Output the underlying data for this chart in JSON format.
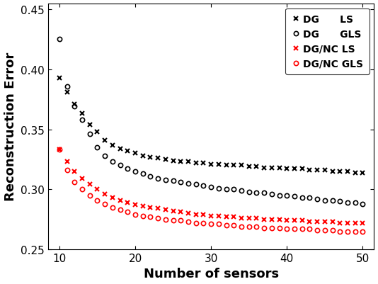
{
  "title": "",
  "xlabel": "Number of sensors",
  "ylabel": "Reconstruction Error",
  "xlim": [
    8.5,
    51.5
  ],
  "ylim": [
    0.25,
    0.455
  ],
  "xticks": [
    10,
    20,
    30,
    40,
    50
  ],
  "yticks": [
    0.25,
    0.3,
    0.35,
    0.4,
    0.45
  ],
  "series": [
    {
      "label": "DG      LS",
      "color": "black",
      "marker": "x",
      "markersize": 5,
      "linewidth": 0,
      "values_x": [
        10,
        11,
        12,
        13,
        14,
        15,
        16,
        17,
        18,
        19,
        20,
        21,
        22,
        23,
        24,
        25,
        26,
        27,
        28,
        29,
        30,
        31,
        32,
        33,
        34,
        35,
        36,
        37,
        38,
        39,
        40,
        41,
        42,
        43,
        44,
        45,
        46,
        47,
        48,
        49,
        50
      ],
      "values_y": [
        0.393,
        0.381,
        0.371,
        0.363,
        0.354,
        0.348,
        0.341,
        0.337,
        0.334,
        0.332,
        0.33,
        0.328,
        0.327,
        0.326,
        0.325,
        0.324,
        0.323,
        0.323,
        0.322,
        0.322,
        0.321,
        0.321,
        0.32,
        0.32,
        0.32,
        0.319,
        0.319,
        0.318,
        0.318,
        0.318,
        0.317,
        0.317,
        0.317,
        0.316,
        0.316,
        0.316,
        0.315,
        0.315,
        0.315,
        0.314,
        0.314
      ]
    },
    {
      "label": "DG      GLS",
      "color": "black",
      "marker": "o",
      "markersize": 4.5,
      "linewidth": 0,
      "values_x": [
        10,
        11,
        12,
        13,
        14,
        15,
        16,
        17,
        18,
        19,
        20,
        21,
        22,
        23,
        24,
        25,
        26,
        27,
        28,
        29,
        30,
        31,
        32,
        33,
        34,
        35,
        36,
        37,
        38,
        39,
        40,
        41,
        42,
        43,
        44,
        45,
        46,
        47,
        48,
        49,
        50
      ],
      "values_y": [
        0.425,
        0.386,
        0.369,
        0.358,
        0.346,
        0.335,
        0.328,
        0.323,
        0.32,
        0.317,
        0.315,
        0.313,
        0.311,
        0.309,
        0.308,
        0.307,
        0.306,
        0.305,
        0.304,
        0.303,
        0.302,
        0.301,
        0.3,
        0.3,
        0.299,
        0.298,
        0.297,
        0.297,
        0.296,
        0.295,
        0.295,
        0.294,
        0.293,
        0.293,
        0.292,
        0.291,
        0.291,
        0.29,
        0.289,
        0.289,
        0.288
      ]
    },
    {
      "label": "DG/NC LS",
      "color": "red",
      "marker": "x",
      "markersize": 5,
      "linewidth": 0,
      "values_x": [
        10,
        11,
        12,
        13,
        14,
        15,
        16,
        17,
        18,
        19,
        20,
        21,
        22,
        23,
        24,
        25,
        26,
        27,
        28,
        29,
        30,
        31,
        32,
        33,
        34,
        35,
        36,
        37,
        38,
        39,
        40,
        41,
        42,
        43,
        44,
        45,
        46,
        47,
        48,
        49,
        50
      ],
      "values_y": [
        0.333,
        0.323,
        0.315,
        0.309,
        0.304,
        0.3,
        0.296,
        0.293,
        0.291,
        0.289,
        0.287,
        0.286,
        0.285,
        0.284,
        0.283,
        0.282,
        0.281,
        0.28,
        0.279,
        0.279,
        0.278,
        0.278,
        0.277,
        0.277,
        0.276,
        0.276,
        0.276,
        0.275,
        0.275,
        0.275,
        0.274,
        0.274,
        0.274,
        0.273,
        0.273,
        0.273,
        0.273,
        0.272,
        0.272,
        0.272,
        0.272
      ]
    },
    {
      "label": "DG/NC GLS",
      "color": "red",
      "marker": "o",
      "markersize": 4.5,
      "linewidth": 0,
      "values_x": [
        10,
        11,
        12,
        13,
        14,
        15,
        16,
        17,
        18,
        19,
        20,
        21,
        22,
        23,
        24,
        25,
        26,
        27,
        28,
        29,
        30,
        31,
        32,
        33,
        34,
        35,
        36,
        37,
        38,
        39,
        40,
        41,
        42,
        43,
        44,
        45,
        46,
        47,
        48,
        49,
        50
      ],
      "values_y": [
        0.333,
        0.316,
        0.306,
        0.3,
        0.295,
        0.291,
        0.288,
        0.285,
        0.283,
        0.281,
        0.279,
        0.278,
        0.277,
        0.276,
        0.275,
        0.274,
        0.274,
        0.273,
        0.272,
        0.272,
        0.271,
        0.271,
        0.27,
        0.27,
        0.269,
        0.269,
        0.269,
        0.268,
        0.268,
        0.268,
        0.267,
        0.267,
        0.267,
        0.267,
        0.266,
        0.266,
        0.266,
        0.265,
        0.265,
        0.265,
        0.265
      ]
    }
  ],
  "legend_loc": "upper right",
  "legend_fontsize": 10,
  "axis_label_fontsize": 13,
  "tick_fontsize": 11,
  "background_color": "#ffffff",
  "figsize": [
    5.34,
    4.02
  ],
  "dpi": 100
}
